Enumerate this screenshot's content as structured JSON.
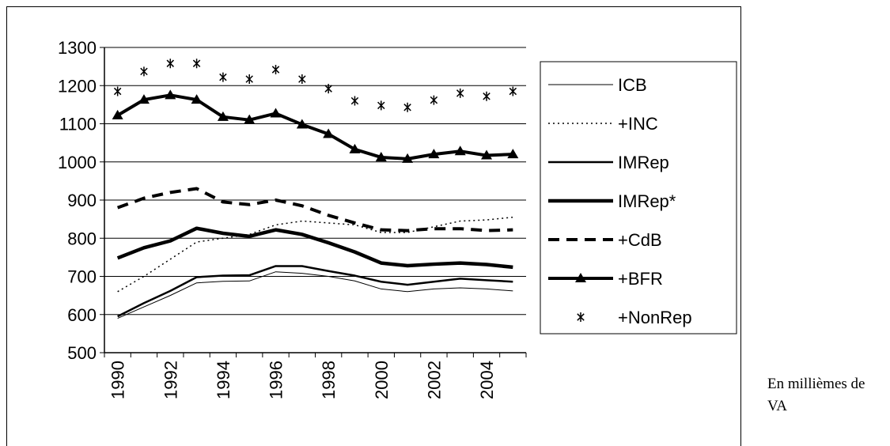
{
  "chart_data": {
    "type": "line",
    "categories": [
      "1990",
      null,
      "1992",
      null,
      "1994",
      null,
      "1996",
      null,
      "1998",
      null,
      "2000",
      null,
      "2002",
      null,
      "2004",
      null
    ],
    "ylim": [
      500,
      1300
    ],
    "yticks": [
      500,
      600,
      700,
      800,
      900,
      1000,
      1100,
      1200,
      1300
    ],
    "grid": true,
    "legend": "right",
    "note": "En millièmes de VA",
    "series": [
      {
        "name": "ICB",
        "color": "#000000",
        "style": "solid",
        "width": 1,
        "marker": "none",
        "values": [
          590,
          620,
          650,
          683,
          687,
          688,
          712,
          708,
          700,
          688,
          667,
          660,
          667,
          670,
          667,
          662
        ]
      },
      {
        "name": "+INC",
        "color": "#000000",
        "style": "dotted",
        "width": 1.5,
        "marker": "none",
        "values": [
          660,
          700,
          745,
          790,
          800,
          810,
          835,
          845,
          840,
          835,
          815,
          815,
          830,
          845,
          848,
          855
        ]
      },
      {
        "name": "IMRep",
        "color": "#000000",
        "style": "solid",
        "width": 2.5,
        "marker": "none",
        "values": [
          595,
          630,
          662,
          698,
          702,
          703,
          727,
          727,
          714,
          702,
          686,
          678,
          686,
          694,
          690,
          686
        ]
      },
      {
        "name": "IMRep*",
        "color": "#000000",
        "style": "solid",
        "width": 4.5,
        "marker": "none",
        "values": [
          748,
          775,
          793,
          826,
          813,
          805,
          822,
          810,
          788,
          764,
          735,
          728,
          732,
          735,
          731,
          724
        ]
      },
      {
        "name": "+CdB",
        "color": "#000000",
        "style": "dashed",
        "width": 4,
        "marker": "none",
        "values": [
          880,
          905,
          920,
          930,
          895,
          888,
          900,
          885,
          860,
          840,
          822,
          820,
          825,
          825,
          820,
          822
        ]
      },
      {
        "name": "+BFR",
        "color": "#000000",
        "style": "solid",
        "width": 4,
        "marker": "triangle",
        "values": [
          1122,
          1163,
          1175,
          1163,
          1118,
          1110,
          1127,
          1098,
          1073,
          1033,
          1012,
          1008,
          1020,
          1028,
          1017,
          1020
        ]
      },
      {
        "name": "+NonRep",
        "color": "#000000",
        "style": "none",
        "width": 1.5,
        "marker": "asterisk",
        "values": [
          1185,
          1237,
          1258,
          1258,
          1222,
          1217,
          1242,
          1217,
          1192,
          1160,
          1148,
          1143,
          1162,
          1180,
          1172,
          1185
        ]
      }
    ]
  }
}
